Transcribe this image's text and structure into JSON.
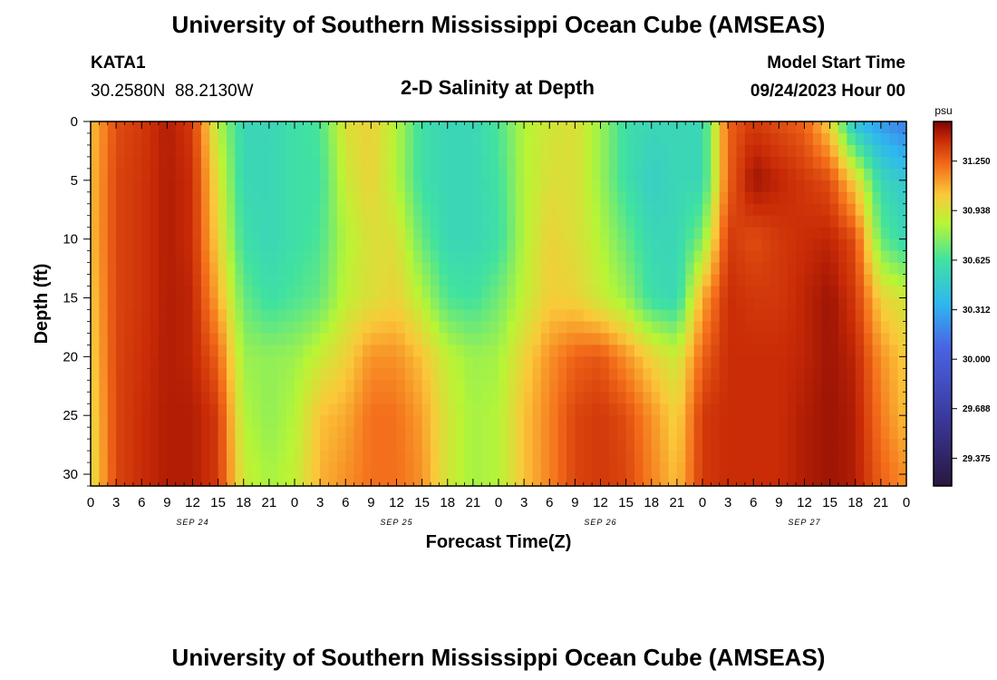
{
  "title": "University of Southern Mississippi Ocean Cube (AMSEAS)",
  "station": {
    "id": "KATA1",
    "coords": "30.2580N  88.2130W"
  },
  "subtitle": "2-D Salinity at Depth",
  "model_start": {
    "label": "Model Start Time",
    "value": "09/24/2023 Hour 00"
  },
  "colorbar": {
    "unit": "psu",
    "ticks": [
      "31.250",
      "30.938",
      "30.625",
      "30.312",
      "30.000",
      "29.688",
      "29.375"
    ]
  },
  "footer_title": "University of Southern Mississippi Ocean Cube (AMSEAS)",
  "chart_data": {
    "type": "heatmap",
    "xlabel": "Forecast Time(Z)",
    "ylabel": "Depth (ft)",
    "xlim": [
      0,
      96
    ],
    "ylim": [
      0,
      31
    ],
    "x_tick_labels": [
      "0",
      "3",
      "6",
      "9",
      "12",
      "15",
      "18",
      "21",
      "0",
      "3",
      "6",
      "9",
      "12",
      "15",
      "18",
      "21",
      "0",
      "3",
      "6",
      "9",
      "12",
      "15",
      "18",
      "21",
      "0",
      "3",
      "6",
      "9",
      "12",
      "15",
      "18",
      "21",
      "0"
    ],
    "y_tick_labels": [
      "0",
      "5",
      "10",
      "15",
      "20",
      "25",
      "30"
    ],
    "date_labels": [
      "SEP 24",
      "SEP 25",
      "SEP 26",
      "SEP 27"
    ],
    "color_range": [
      29.2,
      31.5
    ],
    "time_hours": [
      0,
      3,
      6,
      9,
      12,
      15,
      18,
      21,
      24,
      27,
      30,
      33,
      36,
      39,
      42,
      45,
      48,
      51,
      54,
      57,
      60,
      63,
      66,
      69,
      72,
      75,
      78,
      81,
      84,
      87,
      90,
      93,
      96
    ],
    "depth_ft": [
      0,
      5,
      10,
      15,
      20,
      25,
      30
    ],
    "salinity_psu": [
      [
        31.05,
        31.05,
        31.05,
        31.02,
        31.0,
        30.97,
        30.95
      ],
      [
        31.3,
        31.32,
        31.32,
        31.32,
        31.32,
        31.32,
        31.32
      ],
      [
        31.35,
        31.36,
        31.36,
        31.36,
        31.37,
        31.38,
        31.38
      ],
      [
        31.42,
        31.42,
        31.42,
        31.42,
        31.42,
        31.42,
        31.42
      ],
      [
        31.35,
        31.38,
        31.38,
        31.4,
        31.4,
        31.42,
        31.42
      ],
      [
        30.85,
        30.95,
        31.0,
        31.1,
        31.25,
        31.35,
        31.35
      ],
      [
        30.55,
        30.55,
        30.6,
        30.7,
        30.8,
        30.85,
        30.9
      ],
      [
        30.55,
        30.55,
        30.55,
        30.6,
        30.78,
        30.78,
        30.82
      ],
      [
        30.6,
        30.6,
        30.6,
        30.65,
        30.8,
        30.85,
        30.88
      ],
      [
        30.65,
        30.62,
        30.65,
        30.7,
        30.9,
        31.05,
        31.08
      ],
      [
        30.95,
        30.9,
        30.85,
        30.88,
        31.0,
        31.1,
        31.15
      ],
      [
        31.0,
        31.0,
        30.95,
        30.95,
        31.15,
        31.22,
        31.22
      ],
      [
        30.85,
        30.85,
        30.95,
        31.0,
        31.15,
        31.22,
        31.22
      ],
      [
        30.6,
        30.6,
        30.7,
        30.85,
        31.05,
        31.12,
        31.15
      ],
      [
        30.55,
        30.55,
        30.55,
        30.65,
        30.88,
        30.92,
        30.92
      ],
      [
        30.55,
        30.55,
        30.55,
        30.62,
        30.8,
        30.82,
        30.82
      ],
      [
        30.65,
        30.62,
        30.6,
        30.72,
        30.82,
        30.85,
        30.85
      ],
      [
        30.85,
        30.85,
        30.85,
        30.88,
        31.0,
        31.05,
        31.05
      ],
      [
        30.92,
        30.95,
        31.0,
        31.02,
        31.15,
        31.18,
        31.18
      ],
      [
        30.95,
        30.95,
        30.95,
        31.0,
        31.25,
        31.32,
        31.32
      ],
      [
        30.8,
        30.8,
        30.85,
        30.9,
        31.28,
        31.35,
        31.35
      ],
      [
        30.6,
        30.6,
        30.7,
        30.8,
        31.15,
        31.3,
        31.32
      ],
      [
        30.55,
        30.5,
        30.55,
        30.6,
        31.0,
        31.15,
        31.18
      ],
      [
        30.55,
        30.55,
        30.55,
        30.55,
        30.9,
        31.0,
        31.05
      ],
      [
        30.55,
        30.55,
        30.75,
        31.1,
        31.25,
        31.35,
        31.35
      ],
      [
        31.25,
        31.25,
        31.35,
        31.38,
        31.38,
        31.38,
        31.38
      ],
      [
        31.35,
        31.45,
        31.3,
        31.35,
        31.38,
        31.38,
        31.38
      ],
      [
        31.3,
        31.4,
        31.35,
        31.35,
        31.38,
        31.38,
        31.38
      ],
      [
        31.25,
        31.35,
        31.38,
        31.4,
        31.4,
        31.42,
        31.42
      ],
      [
        31.0,
        31.3,
        31.4,
        31.45,
        31.45,
        31.45,
        31.45
      ],
      [
        30.4,
        31.0,
        31.3,
        31.35,
        31.4,
        31.42,
        31.42
      ],
      [
        30.25,
        30.55,
        30.7,
        31.0,
        31.15,
        31.2,
        31.25
      ],
      [
        30.15,
        30.45,
        30.55,
        30.92,
        31.02,
        31.05,
        31.15
      ]
    ]
  }
}
